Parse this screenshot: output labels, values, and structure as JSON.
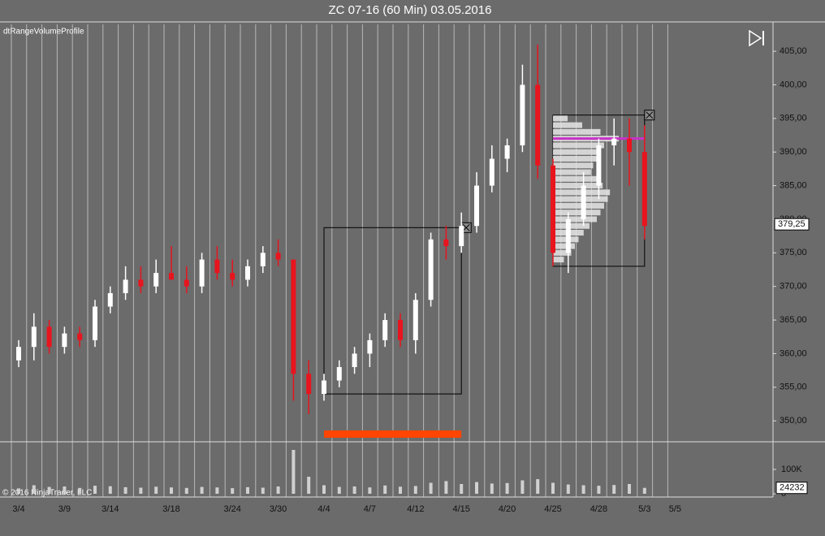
{
  "chart_data": {
    "type": "candlestick",
    "title": "ZC 07-16 (60 Min)  03.05.2016",
    "indicator_label": "dtRangeVolumeProfile",
    "copyright": "© 2016 NinjaTrader, LLC",
    "categories": [
      "3/4",
      null,
      null,
      "3/9",
      null,
      null,
      "3/14",
      null,
      null,
      null,
      "3/18",
      null,
      null,
      null,
      "3/24",
      null,
      null,
      "3/30",
      null,
      null,
      "4/4",
      null,
      null,
      "4/7",
      null,
      null,
      "4/12",
      null,
      null,
      "4/15",
      null,
      null,
      "4/20",
      null,
      null,
      "4/25",
      null,
      null,
      "4/28",
      null,
      null,
      "5/3",
      null,
      "5/5"
    ],
    "open": [
      359,
      361,
      364,
      361,
      363,
      362,
      367,
      369,
      371,
      370,
      372,
      371,
      370,
      374,
      372,
      371,
      373,
      375,
      374,
      357,
      354,
      356,
      358,
      360,
      362,
      365,
      362,
      368,
      377,
      376,
      379,
      385,
      389,
      391,
      400,
      388,
      375,
      380,
      385,
      391,
      392,
      390,
      null,
      null
    ],
    "high": [
      362,
      366,
      365,
      364,
      364,
      368,
      370,
      373,
      373,
      374,
      376,
      373,
      375,
      376,
      374,
      374,
      376,
      377,
      374,
      359,
      357,
      359,
      361,
      363,
      366,
      366,
      369,
      378,
      379,
      381,
      387,
      391,
      392,
      403,
      406,
      389,
      381,
      387,
      392,
      395,
      395,
      394,
      null,
      null
    ],
    "low": [
      358,
      359,
      360,
      360,
      361,
      361,
      366,
      368,
      369,
      369,
      371,
      369,
      369,
      371,
      370,
      370,
      372,
      373,
      353,
      351,
      353,
      355,
      357,
      358,
      361,
      361,
      360,
      367,
      374,
      375,
      378,
      384,
      387,
      390,
      386,
      373,
      372,
      379,
      383,
      388,
      385,
      377,
      null,
      null
    ],
    "close": [
      361,
      364,
      361,
      363,
      362,
      367,
      369,
      371,
      370,
      372,
      371,
      370,
      374,
      372,
      371,
      373,
      375,
      374,
      357,
      354,
      356,
      358,
      360,
      362,
      365,
      362,
      368,
      377,
      376,
      379,
      385,
      389,
      391,
      400,
      388,
      375,
      380,
      385,
      391,
      392,
      390,
      379,
      null,
      null
    ],
    "up_color": "#ffffff",
    "down_color": "#e8141e",
    "ylim": [
      347,
      409
    ],
    "yticks": [
      {
        "value": 350,
        "label": "350,00"
      },
      {
        "value": 355,
        "label": "355,00"
      },
      {
        "value": 360,
        "label": "360,00"
      },
      {
        "value": 365,
        "label": "365,00"
      },
      {
        "value": 370,
        "label": "370,00"
      },
      {
        "value": 375,
        "label": "375,00"
      },
      {
        "value": 380,
        "label": "380,00"
      },
      {
        "value": 385,
        "label": "385,00"
      },
      {
        "value": 390,
        "label": "390,00"
      },
      {
        "value": 395,
        "label": "395,00"
      },
      {
        "value": 400,
        "label": "400,00"
      },
      {
        "value": 405,
        "label": "405,00"
      }
    ],
    "last_price": {
      "value": 379.25,
      "label": "379,25"
    },
    "ranges": [
      {
        "from": "4/4",
        "to": "4/15",
        "low": 354,
        "high": 378.75
      },
      {
        "from": "4/25",
        "to": "5/3",
        "low": 373,
        "high": 395.5
      }
    ],
    "profile": {
      "prices": [
        374,
        375,
        376,
        377,
        378,
        379,
        380,
        381,
        382,
        383,
        384,
        385,
        386,
        387,
        388,
        389,
        390,
        391,
        392,
        393,
        394,
        395
      ],
      "volumes": [
        1500,
        2500,
        3000,
        3500,
        4200,
        5000,
        6000,
        6500,
        7000,
        7500,
        7800,
        6800,
        6000,
        5200,
        5500,
        6000,
        6300,
        7000,
        9000,
        6500,
        4000,
        2000
      ],
      "xlim": [
        0,
        10000
      ],
      "poc": 392,
      "poc_color": "#c832c8"
    },
    "volume": {
      "values": [
        22000,
        35000,
        28000,
        30000,
        24000,
        33000,
        31000,
        27000,
        25000,
        29000,
        26000,
        24000,
        28000,
        26000,
        23000,
        27000,
        25000,
        30000,
        180000,
        70000,
        35000,
        28000,
        30000,
        26000,
        34000,
        29000,
        32000,
        45000,
        52000,
        40000,
        48000,
        42000,
        44000,
        55000,
        60000,
        45000,
        38000,
        35000,
        33000,
        36000,
        40000,
        24232,
        null,
        null
      ],
      "color": "#d0d0d0",
      "ylim": [
        0,
        210000
      ],
      "yticks": [
        0,
        {
          "value": 100000,
          "label": "100K"
        }
      ],
      "last": 24232
    }
  }
}
